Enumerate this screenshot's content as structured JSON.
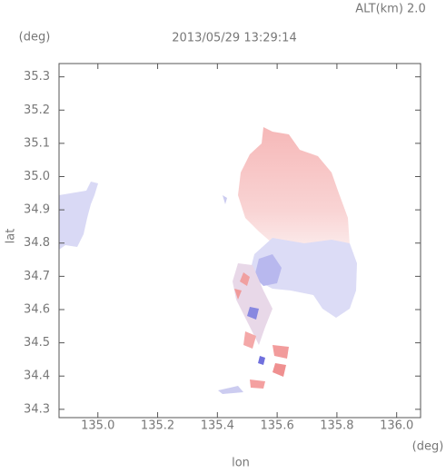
{
  "chart_data": {
    "type": "map",
    "title": "2013/05/29 13:29:14",
    "subtitle": "ALT(km) 2.0",
    "y_unit": "(deg)",
    "x_unit": "(deg)",
    "xlabel": "lon",
    "ylabel": "lat",
    "xlim": [
      134.87,
      136.08
    ],
    "ylim": [
      34.275,
      35.34
    ],
    "xticks": [
      {
        "value": 135,
        "label": "135.0"
      },
      135.2,
      135.4,
      135.6,
      135.8,
      {
        "value": 136,
        "label": "136.0"
      }
    ],
    "yticks": [
      34.3,
      34.4,
      34.5,
      34.6,
      34.7,
      34.8,
      34.9,
      {
        "value": 35,
        "label": "35.0"
      },
      35.1,
      35.2,
      35.3
    ]
  }
}
